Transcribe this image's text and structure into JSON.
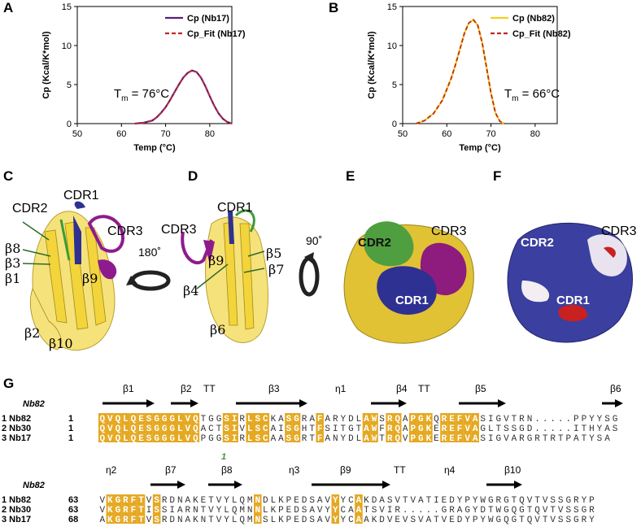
{
  "panels": {
    "a": "A",
    "b": "B",
    "c": "C",
    "d": "D",
    "e": "E",
    "f": "F",
    "g": "G"
  },
  "chart_data": [
    {
      "type": "line",
      "panel": "A",
      "xlabel": "Temp (°C)",
      "ylabel": "Cp (Kcal/K*mol)",
      "xlim": [
        50,
        85
      ],
      "ylim": [
        0,
        15
      ],
      "xticks": [
        "50",
        "60",
        "70",
        "80"
      ],
      "yticks": [
        "0",
        "5",
        "10",
        "15"
      ],
      "legend": "top-right",
      "annotation": {
        "T": "T",
        "sub": "m",
        "rest": " = 76°C"
      },
      "series": [
        {
          "name": "Cp (Nb17)",
          "color": "#5b1f7a",
          "style": "solid",
          "x": [
            63,
            65,
            67,
            68,
            69,
            70,
            71,
            72,
            73,
            74,
            75,
            76,
            77,
            78,
            79,
            80,
            81,
            82,
            83,
            84,
            85
          ],
          "y": [
            0,
            0.1,
            0.4,
            0.8,
            1.4,
            2.1,
            3.0,
            4.0,
            5.0,
            5.9,
            6.5,
            6.8,
            6.6,
            5.9,
            4.8,
            3.5,
            2.3,
            1.3,
            0.6,
            0.2,
            0
          ]
        },
        {
          "name": "Cp_Fit (Nb17)",
          "color": "#c0272d",
          "style": "dashed",
          "x": [
            63,
            65,
            67,
            68,
            69,
            70,
            71,
            72,
            73,
            74,
            75,
            76,
            77,
            78,
            79,
            80,
            81,
            82,
            83,
            84,
            85
          ],
          "y": [
            0,
            0.1,
            0.4,
            0.8,
            1.4,
            2.1,
            3.0,
            4.0,
            5.0,
            5.9,
            6.5,
            6.8,
            6.6,
            5.9,
            4.8,
            3.5,
            2.3,
            1.3,
            0.6,
            0.2,
            0
          ]
        }
      ]
    },
    {
      "type": "line",
      "panel": "B",
      "xlabel": "Temp (°C)",
      "ylabel": "Cp (Kcal/K*mol)",
      "xlim": [
        50,
        85
      ],
      "ylim": [
        0,
        15
      ],
      "xticks": [
        "50",
        "60",
        "70",
        "80"
      ],
      "yticks": [
        "0",
        "5",
        "10",
        "15"
      ],
      "legend": "top-right",
      "annotation": {
        "T": "T",
        "sub": "m",
        "rest": " = 66°C"
      },
      "series": [
        {
          "name": "Cp (Nb82)",
          "color": "#f2d21b",
          "style": "solid",
          "x": [
            53,
            55,
            57,
            59,
            61,
            62,
            63,
            64,
            65,
            66,
            67,
            68,
            69,
            70,
            71,
            72,
            73
          ],
          "y": [
            0,
            0.4,
            1.3,
            3.0,
            5.8,
            7.6,
            9.6,
            11.6,
            12.9,
            13.3,
            12.6,
            10.4,
            7.2,
            3.9,
            1.4,
            0.3,
            0
          ]
        },
        {
          "name": "Cp_Fit (Nb82)",
          "color": "#c0272d",
          "style": "dashed",
          "x": [
            53,
            55,
            57,
            59,
            61,
            62,
            63,
            64,
            65,
            66,
            67,
            68,
            69,
            70,
            71,
            72,
            73
          ],
          "y": [
            0,
            0.4,
            1.3,
            3.0,
            5.8,
            7.6,
            9.6,
            11.6,
            12.9,
            13.3,
            12.6,
            10.4,
            7.2,
            3.9,
            1.4,
            0.3,
            0
          ]
        }
      ]
    }
  ],
  "structures": {
    "c_labels": [
      "CDR2",
      "CDR1",
      "CDR3",
      "β8",
      "β3",
      "β1",
      "β9",
      "β2",
      "β10"
    ],
    "d_labels": [
      "CDR1",
      "CDR3",
      "β5",
      "β9",
      "β7",
      "β4",
      "β6"
    ],
    "rot1": "180˚",
    "rot2": "90˚",
    "e_labels": [
      "CDR2",
      "CDR3",
      "CDR1"
    ],
    "f_labels": [
      "CDR2",
      "CDR3",
      "CDR1"
    ]
  },
  "alignment": {
    "block1": {
      "ref": "Nb82",
      "ss": [
        "β1",
        "β2",
        "TT",
        "β3",
        "η1",
        "β4",
        "TT",
        "β5",
        "β6"
      ],
      "rows": [
        {
          "label": "1 Nb82",
          "start": "1",
          "seq": "QVQLQESGGGLVQTGGSIRLSCKASGRAFARYDLAWSRQAPGKQREFVASIGVTRN.....PPYYSG"
        },
        {
          "label": "2 Nb30",
          "start": "1",
          "seq": "QVQLQESGGGLVQACTSIVLSCAISGHTFSITGTAWFRQAPGKEREFVAGLTSSGD.....ITHYAS"
        },
        {
          "label": "3 Nb17",
          "start": "1",
          "seq": "QVQLQESGGGLVQPGGSIRLSCAASGRTFANYDLAWTRQVPGKEREFVASIGVARGRTRTPATYSA"
        }
      ],
      "footnote": "1"
    },
    "block2": {
      "ref": "Nb82",
      "ss": [
        "η2",
        "β7",
        "β8",
        "η3",
        "β9",
        "TT",
        "η4",
        "β10"
      ],
      "rows": [
        {
          "label": "1 Nb82",
          "start": "63",
          "seq": "VKGRFTVSRDNAKETVYLQMNDLKPEDSAVYYCAKDASVTVATIEDYPYWGRGTQVTVSSGRYP"
        },
        {
          "label": "2 Nb30",
          "start": "63",
          "seq": "VKGRFTISSIARNTVYLQMNNLKPEDSAVYYCAATSVIR.....GRAGYDTWGQGTQVTVSSGRYP"
        },
        {
          "label": "3 Nb17",
          "start": "68",
          "seq": "AKGRFTVSRDNAKNTVYLQMNSLKPEDSAVYYCAAKDVEVSVATVEDYPYWGQGTQVTVSSGRYP"
        }
      ]
    }
  }
}
